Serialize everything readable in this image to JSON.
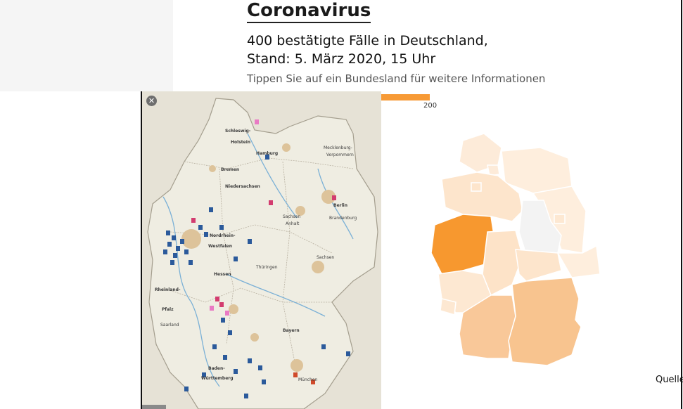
{
  "header": {
    "title": "Coronavirus",
    "subtitle_line1": "400 bestätigte Fälle in Deutschland,",
    "subtitle_line2": "Stand: 5. März 2020, 15 Uhr",
    "hint": "Tippen Sie auf ein Bundesland für weitere Informationen"
  },
  "legend": {
    "max_value": "200",
    "color": "#f79a35"
  },
  "source_label": "Quelle",
  "overlay_map": {
    "close_icon": "close-icon",
    "prev_icon": "chevron-left-icon",
    "next_icon": "chevron-right-icon",
    "labels": {
      "schleswig": "Schleswig-",
      "holstein": "Holstein",
      "hamburg": "Hamburg",
      "bremen": "Bremen",
      "niedersachsen": "Niedersachsen",
      "berlin": "Berlin",
      "brandenburg": "Brandenburg",
      "nordrhein": "Nordrhein-",
      "westfalen": "Westfalen",
      "hessen": "Hessen",
      "thueringen": "Thüringen",
      "sachsen": "Sachsen",
      "anhalt": "Anhalt",
      "mecklenburg": "Mecklenburg-",
      "vorpommern": "Vorpommern",
      "rheinland": "Rheinland-",
      "pfalz": "Pfalz",
      "saarland": "Saarland",
      "bayern": "Bayern",
      "baden": "Baden-",
      "wuerttemberg": "Württemberg",
      "muenchen": "München"
    }
  },
  "choropleth": {
    "colors": {
      "NW": "#f7982f",
      "BY": "#f8c48f",
      "BW": "#f9c899",
      "NI": "#fde5cc",
      "HE": "#fde3c8",
      "RP": "#fde8d2",
      "SL": "#fde8d2",
      "SH": "#fdebd9",
      "HH": "#fdebd9",
      "HB": "#fde5cc",
      "MV": "#feeedd",
      "BB": "#feeedd",
      "BE": "#fde8d2",
      "ST": "#f3f3f3",
      "SN": "#feeedd",
      "TH": "#fde5cc"
    }
  }
}
